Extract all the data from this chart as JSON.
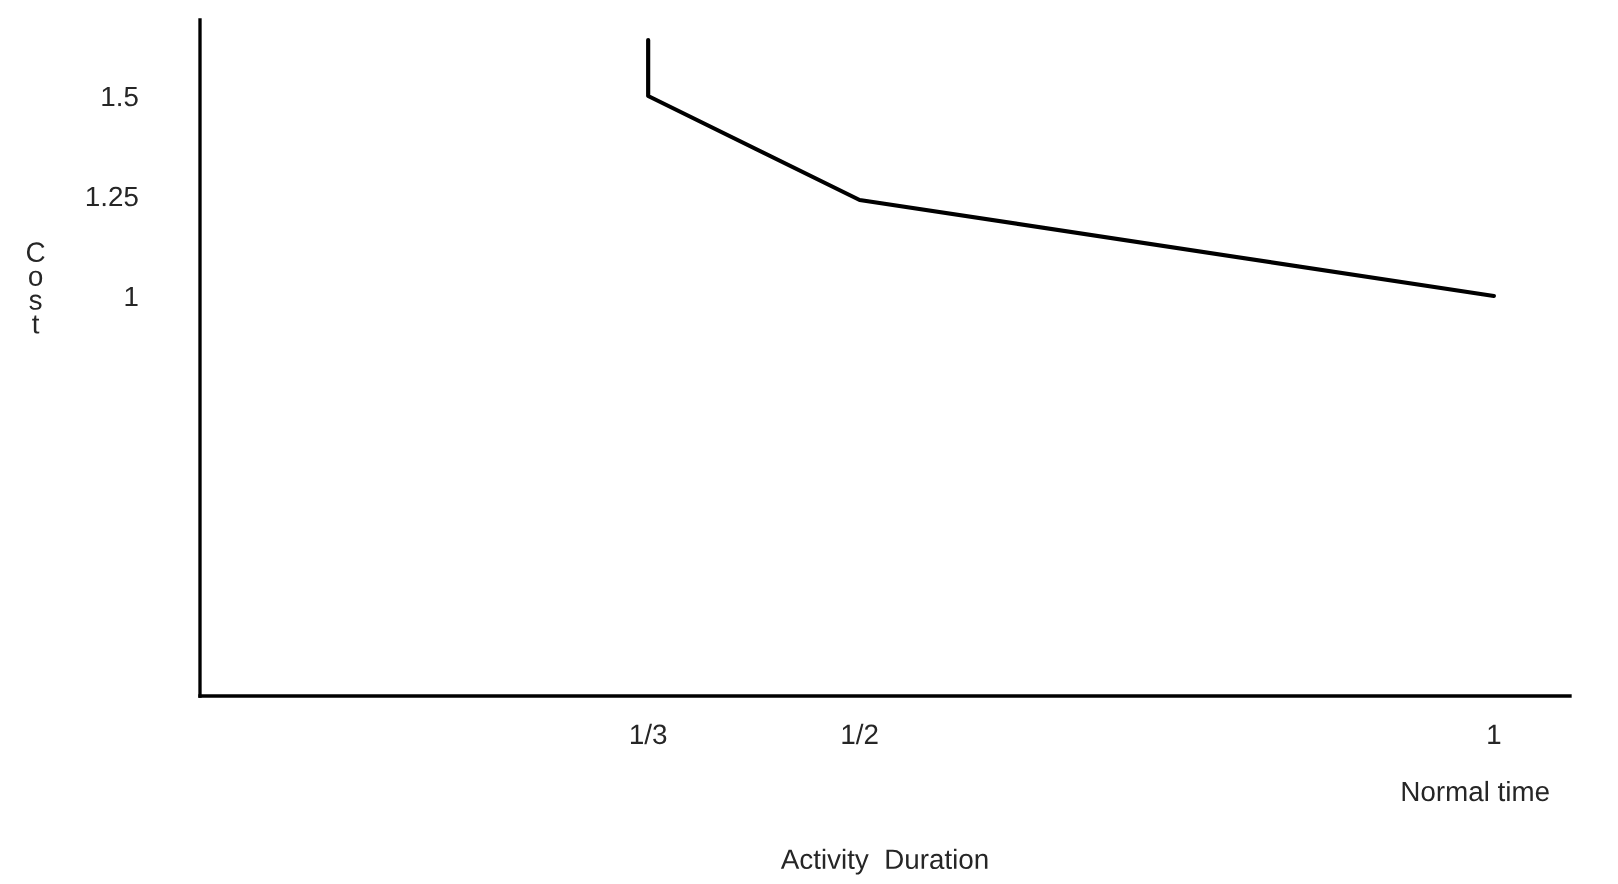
{
  "chart_data": {
    "type": "line",
    "xlabel": "Activity  Duration",
    "ylabel": "Cost",
    "x": [
      0.3333,
      0.3333,
      0.5,
      1
    ],
    "series": [
      {
        "color": "#000000",
        "values": [
          1.64,
          1.5,
          1.24,
          1.0
        ]
      }
    ],
    "xlim": [
      -0.02,
      1.06
    ],
    "ylim": [
      0,
      1.69
    ],
    "xticks": [
      {
        "value": 0.3333,
        "label": "1/3"
      },
      {
        "value": 0.5,
        "label": "1/2"
      },
      1
    ],
    "yticks": [
      1,
      1.25,
      1.5
    ],
    "annotations": [
      "Normal time"
    ],
    "grid": false,
    "legend": false,
    "marker": "none",
    "line_style": "solid"
  }
}
